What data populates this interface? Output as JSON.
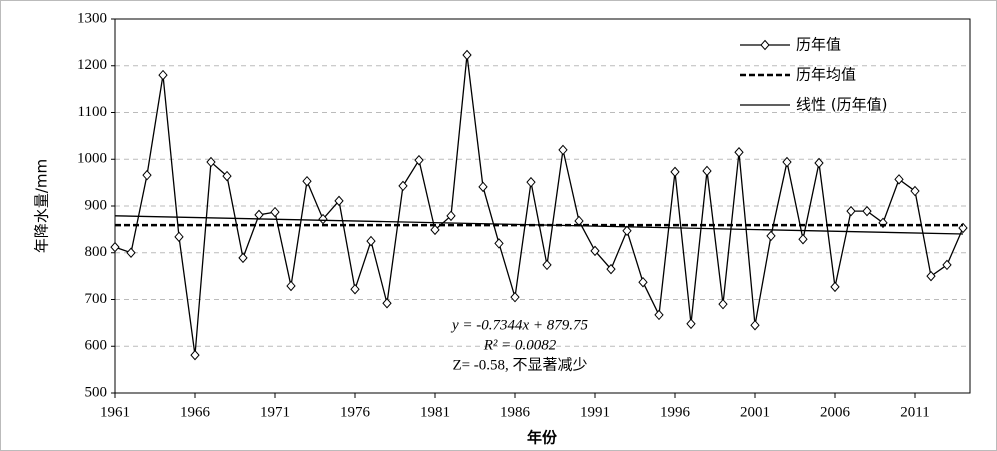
{
  "chart_data": {
    "type": "line",
    "x": [
      1961,
      1962,
      1963,
      1964,
      1965,
      1966,
      1967,
      1968,
      1969,
      1970,
      1971,
      1972,
      1973,
      1974,
      1975,
      1976,
      1977,
      1978,
      1979,
      1980,
      1981,
      1982,
      1983,
      1984,
      1985,
      1986,
      1987,
      1988,
      1989,
      1990,
      1991,
      1992,
      1993,
      1994,
      1995,
      1996,
      1997,
      1998,
      1999,
      2000,
      2001,
      2002,
      2003,
      2004,
      2005,
      2006,
      2007,
      2008,
      2009,
      2010,
      2011,
      2012,
      2013,
      2014
    ],
    "series": [
      {
        "name": "历年值",
        "color": "#000000",
        "marker": "diamond",
        "values": [
          812,
          800,
          966,
          1180,
          834,
          581,
          994,
          964,
          789,
          881,
          887,
          729,
          953,
          872,
          911,
          722,
          825,
          692,
          943,
          998,
          849,
          879,
          1223,
          941,
          820,
          705,
          951,
          774,
          1020,
          868,
          804,
          765,
          847,
          737,
          667,
          973,
          648,
          975,
          690,
          1015,
          645,
          836,
          994,
          829,
          992,
          727,
          889,
          889,
          864,
          957,
          932,
          750,
          774,
          853
        ]
      },
      {
        "name": "历年均值",
        "color": "#000000",
        "dash": true,
        "x": [
          1961,
          2014
        ],
        "values": [
          859,
          859
        ]
      },
      {
        "name": "线性 (历年值)",
        "color": "#000000",
        "x": [
          1961,
          2014
        ],
        "values": [
          879.02,
          840.09
        ]
      }
    ],
    "xlabel": "年份",
    "ylabel": "年降水量/mm",
    "xlim": [
      1961,
      2014
    ],
    "ylim": [
      500,
      1300
    ],
    "xticks": [
      1961,
      1966,
      1971,
      1976,
      1981,
      1986,
      1991,
      1996,
      2001,
      2006,
      2011
    ],
    "yticks": [
      500,
      600,
      700,
      800,
      900,
      1000,
      1100,
      1200,
      1300
    ],
    "grid": true,
    "legend": "upper right",
    "annotations": [
      "y = -0.7344x + 879.75",
      "R² = 0.0082",
      "Z= -0.58, 不显著减少"
    ]
  }
}
